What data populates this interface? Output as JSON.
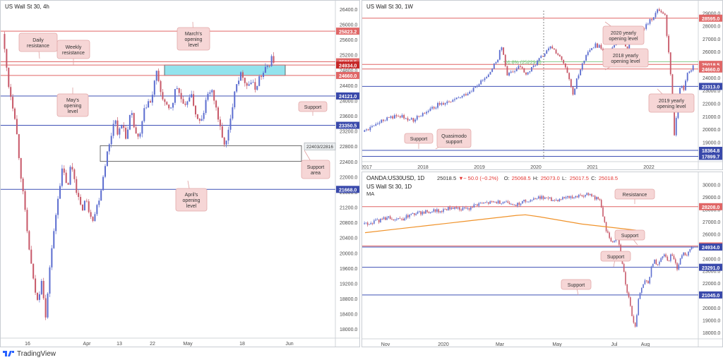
{
  "chart_data": [
    {
      "id": "p4h",
      "type": "candlestick",
      "title": "US Wall St 30, 4h",
      "ylim": [
        17800,
        26400
      ],
      "yticks": [
        "26400.0",
        "26000.0",
        "25600.0",
        "25200.0",
        "24800.0",
        "24400.0",
        "24000.0",
        "23600.0",
        "23200.0",
        "22800.0",
        "22400.0",
        "22000.0",
        "21600.0",
        "21200.0",
        "20800.0",
        "20400.0",
        "20000.0",
        "19600.0",
        "19200.0",
        "18800.0",
        "18400.0",
        "18000.0"
      ],
      "xticks": [
        "16",
        "Apr",
        "13",
        "22",
        "May",
        "18",
        "Jun"
      ],
      "levels": [
        {
          "value": 25823.2,
          "label": "25823.2",
          "color": "#e06666",
          "badge": "#e06666"
        },
        {
          "value": 25018.5,
          "label": "25018.5",
          "color": "#e06666",
          "badge": "#e06666"
        },
        {
          "value": 24934.0,
          "label": "24934.0",
          "color": "#e06666",
          "badge": "#c62828"
        },
        {
          "value": 24660.0,
          "label": "24660.0",
          "color": "#e06666",
          "badge": "#e06666"
        },
        {
          "value": 24121.0,
          "label": "24121.0",
          "color": "#3f51b5",
          "badge": "#3949ab"
        },
        {
          "value": 23350.5,
          "label": "23350.5",
          "color": "#3f51b5",
          "badge": "#3949ab"
        },
        {
          "value": 21668.0,
          "label": "21668.0",
          "color": "#3f51b5",
          "badge": "#3949ab"
        }
      ],
      "zones": [
        {
          "from": 24660,
          "to": 24934,
          "color": "#80deea",
          "label": ""
        },
        {
          "from": 22403,
          "to": 22816,
          "color": "#ffffff",
          "label": "22403/22816"
        }
      ],
      "annotations": [
        {
          "text": "Daily\nresistance"
        },
        {
          "text": "Weekly\nresistance"
        },
        {
          "text": "March's\nopening\nlevel"
        },
        {
          "text": "May's\nopening\nlevel"
        },
        {
          "text": "Support"
        },
        {
          "text": "Support\narea"
        },
        {
          "text": "April's\nopening\nlevel"
        }
      ],
      "path": [
        [
          0,
          25750
        ],
        [
          3,
          24400
        ],
        [
          6,
          23600
        ],
        [
          9,
          22000
        ],
        [
          12,
          20500
        ],
        [
          15,
          19200
        ],
        [
          17,
          18700
        ],
        [
          19,
          19400
        ],
        [
          21,
          18200
        ],
        [
          23,
          19800
        ],
        [
          25,
          20600
        ],
        [
          27,
          21600
        ],
        [
          29,
          22200
        ],
        [
          30,
          22000
        ],
        [
          32,
          21700
        ],
        [
          33,
          22400
        ],
        [
          35,
          21900
        ],
        [
          36,
          21600
        ],
        [
          38,
          21100
        ],
        [
          40,
          21400
        ],
        [
          42,
          21100
        ],
        [
          44,
          20900
        ],
        [
          46,
          21300
        ],
        [
          48,
          21800
        ],
        [
          50,
          22500
        ],
        [
          52,
          22900
        ],
        [
          54,
          23600
        ],
        [
          56,
          23100
        ],
        [
          58,
          23400
        ],
        [
          60,
          23000
        ],
        [
          62,
          23700
        ],
        [
          64,
          23200
        ],
        [
          66,
          22900
        ],
        [
          68,
          23600
        ],
        [
          70,
          24000
        ],
        [
          72,
          23900
        ],
        [
          74,
          24800
        ],
        [
          76,
          24300
        ],
        [
          78,
          24000
        ],
        [
          80,
          23700
        ],
        [
          82,
          23900
        ],
        [
          84,
          24400
        ],
        [
          86,
          24100
        ],
        [
          88,
          23700
        ],
        [
          90,
          24200
        ],
        [
          92,
          24000
        ],
        [
          94,
          23500
        ],
        [
          96,
          23400
        ],
        [
          98,
          23900
        ],
        [
          100,
          24300
        ],
        [
          102,
          24100
        ],
        [
          104,
          23600
        ],
        [
          106,
          23000
        ],
        [
          108,
          22850
        ],
        [
          110,
          23400
        ],
        [
          112,
          24300
        ],
        [
          114,
          24600
        ],
        [
          116,
          24700
        ],
        [
          118,
          24400
        ],
        [
          120,
          24500
        ],
        [
          122,
          24300
        ],
        [
          124,
          24600
        ],
        [
          126,
          24700
        ],
        [
          128,
          24900
        ],
        [
          130,
          25100
        ],
        [
          131,
          25050
        ]
      ]
    },
    {
      "id": "p1w",
      "type": "candlestick",
      "title": "US Wall St 30, 1W",
      "ylim": [
        17600,
        29400
      ],
      "yticks": [
        "29000.0",
        "28000.0",
        "27000.0",
        "26000.0",
        "25000.0",
        "24000.0",
        "23000.0",
        "22000.0",
        "21000.0",
        "20000.0",
        "19000.0",
        "18000.0"
      ],
      "xticks": [
        "2017",
        "2018",
        "2019",
        "2020",
        "2021",
        "2022"
      ],
      "levels": [
        {
          "value": 28595.0,
          "label": "28595.0",
          "color": "#e06666",
          "badge": "#e06666"
        },
        {
          "value": 25018.5,
          "label": "25018.5",
          "color": "#e06666",
          "badge": "#e06666"
        },
        {
          "value": 24660.0,
          "label": "24660.0",
          "color": "#e06666",
          "badge": "#e06666"
        },
        {
          "value": 23313.0,
          "label": "23313.0",
          "color": "#3f51b5",
          "badge": "#3949ab"
        },
        {
          "value": 18364.8,
          "label": "18364.8",
          "color": "#3f51b5",
          "badge": "#3949ab"
        },
        {
          "value": 17899.7,
          "label": "17899.7",
          "color": "#3f51b5",
          "badge": "#3949ab"
        }
      ],
      "fib": {
        "value": 25229.3,
        "label": "61.8% (25229.3)"
      },
      "annotations": [
        {
          "text": "2020 yearly\nopening level"
        },
        {
          "text": "2018 yearly\nopening level"
        },
        {
          "text": "2019 yearly\nopening level"
        },
        {
          "text": "Support"
        },
        {
          "text": "Quasimodo\nsupport"
        }
      ],
      "path": [
        [
          0,
          19800
        ],
        [
          4,
          20300
        ],
        [
          8,
          20900
        ],
        [
          12,
          21000
        ],
        [
          16,
          20700
        ],
        [
          20,
          21400
        ],
        [
          24,
          21900
        ],
        [
          28,
          22100
        ],
        [
          32,
          22600
        ],
        [
          36,
          23300
        ],
        [
          40,
          24200
        ],
        [
          43,
          25500
        ],
        [
          44,
          26500
        ],
        [
          46,
          24200
        ],
        [
          48,
          24500
        ],
        [
          50,
          24900
        ],
        [
          52,
          24200
        ],
        [
          54,
          24800
        ],
        [
          56,
          25400
        ],
        [
          58,
          25900
        ],
        [
          60,
          26400
        ],
        [
          62,
          25800
        ],
        [
          64,
          25000
        ],
        [
          65,
          24300
        ],
        [
          66,
          23400
        ],
        [
          67,
          22500
        ],
        [
          68,
          23800
        ],
        [
          70,
          25200
        ],
        [
          72,
          26000
        ],
        [
          74,
          26500
        ],
        [
          76,
          26300
        ],
        [
          78,
          25800
        ],
        [
          80,
          26600
        ],
        [
          82,
          26900
        ],
        [
          84,
          26300
        ],
        [
          86,
          27200
        ],
        [
          88,
          27600
        ],
        [
          90,
          28000
        ],
        [
          92,
          28600
        ],
        [
          94,
          29300
        ],
        [
          96,
          28900
        ],
        [
          97,
          26500
        ],
        [
          98,
          24000
        ],
        [
          99,
          19500
        ],
        [
          100,
          21800
        ],
        [
          101,
          23500
        ],
        [
          102,
          23000
        ],
        [
          103,
          24300
        ],
        [
          104,
          24400
        ],
        [
          105,
          25000
        ]
      ]
    },
    {
      "id": "p1d",
      "type": "candlestick",
      "title": "US Wall St 30, 1D",
      "header": "OANDA:US30USD, 1D",
      "ohlc": {
        "price": "25018.5",
        "change": "− 50.0 (−0.2%)",
        "o": "25068.5",
        "h": "25073.0",
        "l": "25017.5",
        "c": "25018.5"
      },
      "indicator": "MA",
      "ylim": [
        17600,
        30200
      ],
      "yticks": [
        "30000.0",
        "29000.0",
        "28000.0",
        "27000.0",
        "26000.0",
        "25000.0",
        "24000.0",
        "23000.0",
        "22000.0",
        "21000.0",
        "20000.0",
        "19000.0",
        "18000.0"
      ],
      "xticks": [
        "Nov",
        "2020",
        "Mar",
        "May",
        "Jul",
        "Aug"
      ],
      "levels": [
        {
          "value": 28208.0,
          "label": "28208.0",
          "color": "#e06666",
          "badge": "#e06666"
        },
        {
          "value": 25018.5,
          "label": "25018.5",
          "color": "#e06666",
          "badge": "#e06666"
        },
        {
          "value": 24934.0,
          "label": "24934.0",
          "color": "#3f51b5",
          "badge": "#3949ab"
        },
        {
          "value": 23291.0,
          "label": "23291.0",
          "color": "#3f51b5",
          "badge": "#3949ab"
        },
        {
          "value": 21045.0,
          "label": "21045.0",
          "color": "#3f51b5",
          "badge": "#3949ab"
        }
      ],
      "ma": [
        [
          0,
          26100
        ],
        [
          30,
          26400
        ],
        [
          60,
          26700
        ],
        [
          90,
          27000
        ],
        [
          120,
          27300
        ],
        [
          140,
          27500
        ],
        [
          148,
          27550
        ],
        [
          160,
          27400
        ],
        [
          180,
          27100
        ],
        [
          200,
          26800
        ],
        [
          230,
          26500
        ],
        [
          250,
          26300
        ]
      ],
      "annotations": [
        {
          "text": "Resistance"
        },
        {
          "text": "Support"
        },
        {
          "text": "Support"
        },
        {
          "text": "Support"
        }
      ],
      "path": [
        [
          0,
          26800
        ],
        [
          8,
          27000
        ],
        [
          16,
          27300
        ],
        [
          24,
          27200
        ],
        [
          32,
          27600
        ],
        [
          40,
          27800
        ],
        [
          48,
          27900
        ],
        [
          56,
          28100
        ],
        [
          64,
          28000
        ],
        [
          72,
          28400
        ],
        [
          80,
          28500
        ],
        [
          88,
          28600
        ],
        [
          96,
          28400
        ],
        [
          104,
          28800
        ],
        [
          112,
          29000
        ],
        [
          120,
          28700
        ],
        [
          128,
          29000
        ],
        [
          136,
          29100
        ],
        [
          140,
          29300
        ],
        [
          144,
          29000
        ],
        [
          148,
          28700
        ],
        [
          150,
          27300
        ],
        [
          152,
          26200
        ],
        [
          154,
          25600
        ],
        [
          156,
          25200
        ],
        [
          158,
          26000
        ],
        [
          160,
          25100
        ],
        [
          162,
          23500
        ],
        [
          164,
          21800
        ],
        [
          166,
          20600
        ],
        [
          168,
          19200
        ],
        [
          170,
          18500
        ],
        [
          172,
          20900
        ],
        [
          174,
          21600
        ],
        [
          176,
          22400
        ],
        [
          178,
          22100
        ],
        [
          180,
          23300
        ],
        [
          182,
          23800
        ],
        [
          184,
          23500
        ],
        [
          186,
          23900
        ],
        [
          188,
          24300
        ],
        [
          190,
          23700
        ],
        [
          192,
          24200
        ],
        [
          194,
          24000
        ],
        [
          196,
          23200
        ],
        [
          198,
          23900
        ],
        [
          200,
          24400
        ],
        [
          202,
          24300
        ],
        [
          204,
          24700
        ],
        [
          206,
          25000
        ]
      ]
    }
  ],
  "brand": {
    "logo_icon": "tradingview-logo-icon",
    "name": "TradingView"
  }
}
